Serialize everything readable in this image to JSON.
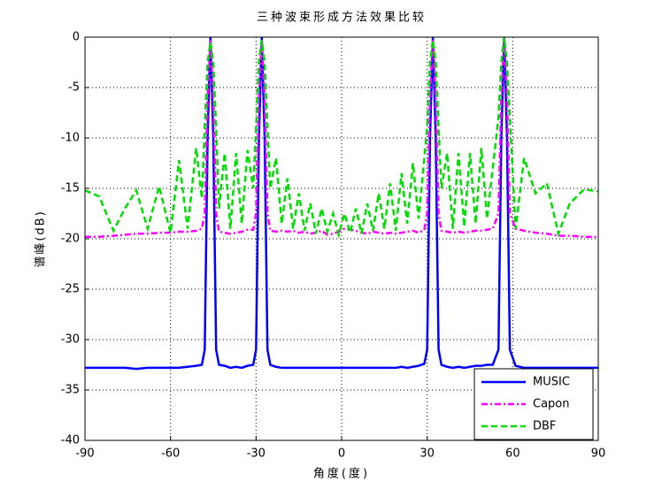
{
  "chart_data": {
    "type": "line",
    "title": "三种波束形成方法效果比较",
    "xlabel": "角度(度)",
    "ylabel": "谱峰(dB)",
    "x": [
      -90,
      -85,
      -80,
      -76,
      -72,
      -68,
      -64,
      -60,
      -57,
      -54,
      -51,
      -49,
      -48,
      -47,
      -46,
      -45,
      -44,
      -43,
      -41,
      -39,
      -37,
      -35,
      -33,
      -31,
      -30,
      -29,
      -28,
      -27,
      -26,
      -25,
      -23,
      -21,
      -19,
      -17,
      -15,
      -13,
      -11,
      -9,
      -7,
      -5,
      -3,
      -1,
      1,
      3,
      5,
      7,
      9,
      11,
      13,
      15,
      17,
      19,
      21,
      23,
      25,
      27,
      29,
      30,
      31,
      32,
      33,
      34,
      35,
      37,
      39,
      41,
      43,
      45,
      47,
      49,
      51,
      53,
      55,
      56,
      57,
      58,
      59,
      61,
      64,
      68,
      72,
      76,
      80,
      85,
      90
    ],
    "series": [
      {
        "name": "MUSIC",
        "color": "#0000ff",
        "dash": "solid",
        "values": [
          -32.8,
          -32.8,
          -32.8,
          -32.8,
          -32.9,
          -32.8,
          -32.8,
          -32.8,
          -32.8,
          -32.7,
          -32.6,
          -32.5,
          -31,
          -10,
          0,
          -10,
          -31,
          -32.5,
          -32.6,
          -32.8,
          -32.7,
          -32.8,
          -32.6,
          -32.5,
          -31,
          -10,
          0,
          -10,
          -31,
          -32.5,
          -32.7,
          -32.8,
          -32.8,
          -32.8,
          -32.8,
          -32.8,
          -32.8,
          -32.8,
          -32.8,
          -32.8,
          -32.8,
          -32.8,
          -32.8,
          -32.8,
          -32.8,
          -32.8,
          -32.8,
          -32.8,
          -32.8,
          -32.8,
          -32.8,
          -32.8,
          -32.7,
          -32.8,
          -32.7,
          -32.6,
          -32.4,
          -31,
          -10,
          0,
          -10,
          -31,
          -32.5,
          -32.7,
          -32.8,
          -32.7,
          -32.8,
          -32.7,
          -32.6,
          -32.6,
          -32.5,
          -32.5,
          -31,
          -10,
          0,
          -10,
          -31,
          -32.6,
          -32.8,
          -32.8,
          -32.8,
          -32.8,
          -32.8,
          -32.8,
          -32.8
        ]
      },
      {
        "name": "Capon",
        "color": "#ff00ff",
        "dash": "dashdot",
        "values": [
          -19.8,
          -19.8,
          -19.7,
          -19.6,
          -19.5,
          -19.5,
          -19.4,
          -19.4,
          -19.3,
          -19.3,
          -19.2,
          -19.0,
          -17.5,
          -6,
          -0.3,
          -6,
          -17.5,
          -19.3,
          -19.4,
          -19.5,
          -19.4,
          -19.3,
          -19.1,
          -19.1,
          -17.5,
          -6,
          -0.3,
          -6,
          -17.5,
          -19.2,
          -19.3,
          -19.2,
          -19.3,
          -19.2,
          -19.4,
          -19.3,
          -19.5,
          -19.4,
          -19.2,
          -19.6,
          -19.5,
          -19.3,
          -19.0,
          -19.1,
          -19.2,
          -19.4,
          -19.5,
          -19.3,
          -19.4,
          -19.5,
          -19.4,
          -19.5,
          -19.4,
          -19.3,
          -19.2,
          -19.4,
          -19.1,
          -17.5,
          -6,
          -0.3,
          -6,
          -17.5,
          -19.2,
          -19.3,
          -19.4,
          -19.3,
          -19.4,
          -19.3,
          -19.2,
          -19.2,
          -19.1,
          -19.0,
          -17.5,
          -6,
          0,
          -6,
          -17.5,
          -19.0,
          -19.2,
          -19.4,
          -19.5,
          -19.7,
          -19.7,
          -19.8,
          -19.8
        ]
      },
      {
        "name": "DBF",
        "color": "#00dd00",
        "dash": "dashed",
        "values": [
          -15.2,
          -15.8,
          -19.2,
          -17,
          -15.2,
          -19,
          -14.8,
          -19.4,
          -12.2,
          -19,
          -11,
          -16,
          -9,
          -2.5,
          -0.5,
          -2.5,
          -9,
          -17,
          -11.5,
          -19,
          -11.5,
          -18.5,
          -11.2,
          -15,
          -9,
          -2.5,
          -0.3,
          -2.5,
          -9,
          -15,
          -12,
          -18.5,
          -14,
          -19,
          -15.5,
          -19.2,
          -16.5,
          -19.5,
          -17,
          -19.3,
          -17.5,
          -19.6,
          -17.5,
          -19.4,
          -17,
          -19.5,
          -16.5,
          -19.2,
          -15.5,
          -19,
          -14.5,
          -19.2,
          -13.5,
          -18.5,
          -12.5,
          -18,
          -12,
          -9,
          -2.5,
          -0.3,
          -2.5,
          -9,
          -15,
          -11.5,
          -19,
          -11.5,
          -18.8,
          -11.5,
          -18.5,
          -11,
          -18,
          -13,
          -8,
          -2.5,
          0,
          -2.5,
          -8,
          -19,
          -12,
          -15.5,
          -14.5,
          -19.5,
          -16.5,
          -15.1,
          -15.3
        ]
      }
    ],
    "xlim": [
      -90,
      90
    ],
    "xticks": [
      -90,
      -60,
      -30,
      0,
      30,
      60,
      90
    ],
    "ylim": [
      -40,
      0
    ],
    "yticks": [
      -40,
      -35,
      -30,
      -25,
      -20,
      -15,
      -10,
      -5,
      0
    ],
    "grid": true,
    "legend": "lower right"
  }
}
